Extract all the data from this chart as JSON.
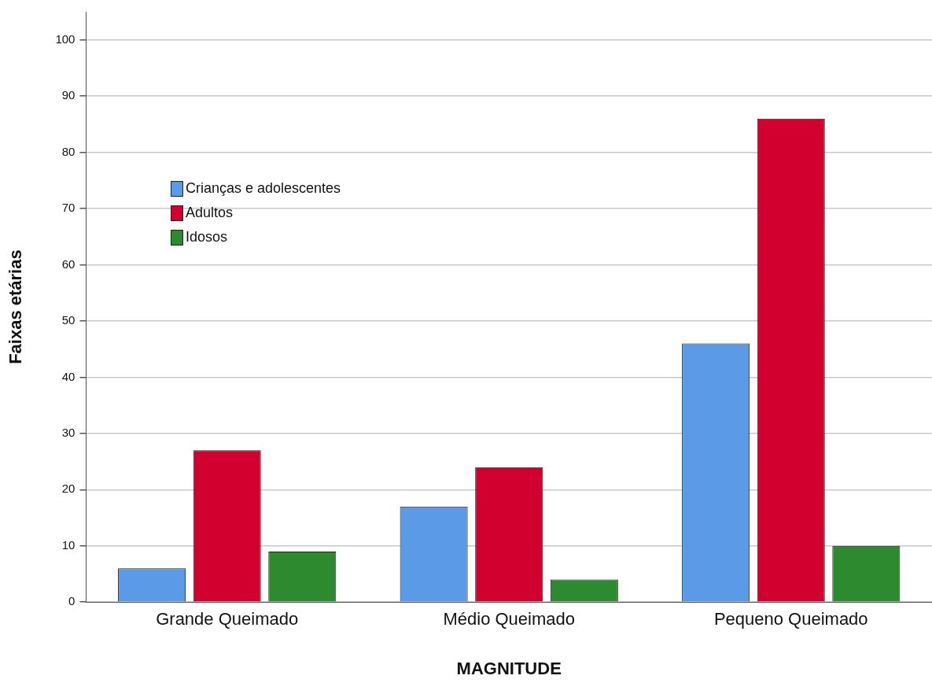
{
  "chart_data": {
    "type": "bar",
    "xlabel": "MAGNITUDE",
    "ylabel": "Faixas etárias",
    "categories": [
      "Grande Queimado",
      "Médio Queimado",
      "Pequeno Queimado"
    ],
    "series": [
      {
        "name": "Crianças e adolescentes",
        "color": "#5a9ae6",
        "values": [
          6,
          17,
          46
        ]
      },
      {
        "name": "Adultos",
        "color": "#d2002e",
        "values": [
          27,
          24,
          86
        ]
      },
      {
        "name": "Idosos",
        "color": "#2e8a2e",
        "values": [
          9,
          4,
          10
        ]
      }
    ],
    "ylim": [
      0,
      105
    ],
    "yticks": [
      0,
      10,
      20,
      30,
      40,
      50,
      60,
      70,
      80,
      90,
      100
    ],
    "grid": "y",
    "legend": "top left"
  }
}
